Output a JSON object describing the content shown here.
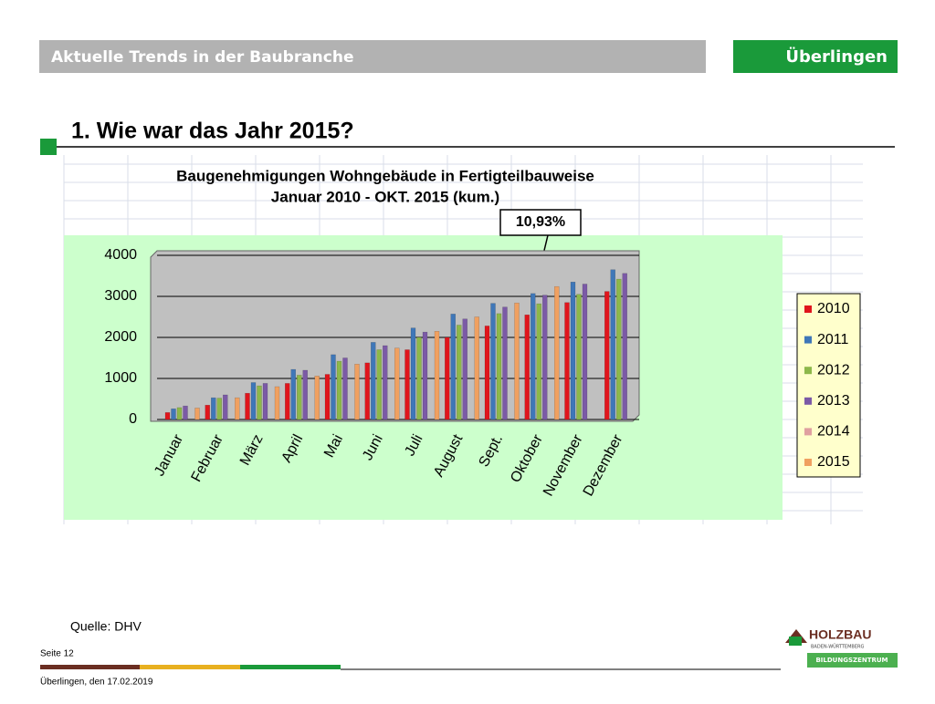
{
  "header": {
    "section": "Aktuelle Trends in der Baubranche",
    "location": "Überlingen",
    "title": "1. Wie war das Jahr 2015?"
  },
  "chart_data": {
    "type": "bar",
    "title": "Baugenehmigungen Wohngebäude in Fertigteilbauweise",
    "subtitle": "Januar 2010 - OKT. 2015 (kum.)",
    "annotation": "10,93%",
    "categories": [
      "Januar",
      "Februar",
      "März",
      "April",
      "Mai",
      "Juni",
      "Juli",
      "August",
      "Sept.",
      "Oktober",
      "November",
      "Dezember"
    ],
    "series": [
      {
        "name": "2010",
        "color": "#e0151c",
        "values": [
          170,
          350,
          640,
          880,
          1100,
          1380,
          1700,
          2000,
          2280,
          2550,
          2850,
          3120
        ]
      },
      {
        "name": "2011",
        "color": "#3f77b8",
        "values": [
          260,
          530,
          900,
          1220,
          1580,
          1880,
          2230,
          2570,
          2830,
          3070,
          3350,
          3650
        ]
      },
      {
        "name": "2012",
        "color": "#8db84a",
        "values": [
          290,
          520,
          820,
          1080,
          1420,
          1700,
          2000,
          2300,
          2580,
          2820,
          3050,
          3420
        ]
      },
      {
        "name": "2013",
        "color": "#7b5aa6",
        "values": [
          330,
          600,
          880,
          1200,
          1500,
          1800,
          2130,
          2450,
          2740,
          3030,
          3300,
          3560
        ]
      },
      {
        "name": "2014",
        "color": "#e0a0a0",
        "values": [
          null,
          null,
          null,
          null,
          null,
          null,
          null,
          null,
          null,
          null,
          null,
          null
        ]
      },
      {
        "name": "2015",
        "color": "#f0a060",
        "values": [
          280,
          530,
          800,
          1060,
          1350,
          1740,
          2150,
          2500,
          2840,
          3240,
          null,
          null
        ]
      }
    ],
    "ylim": [
      0,
      4000
    ],
    "yticks": [
      0,
      1000,
      2000,
      3000,
      4000
    ],
    "grid": true,
    "legend": "right"
  },
  "footer": {
    "source": "Quelle: DHV",
    "page": "Seite 12",
    "date": "Überlingen, den 17.02.2019",
    "logo": "HOLZBAU",
    "logo_sub": "BADEN-WÜRTTEMBERG",
    "logo_band": "BILDUNGSZENTRUM"
  }
}
